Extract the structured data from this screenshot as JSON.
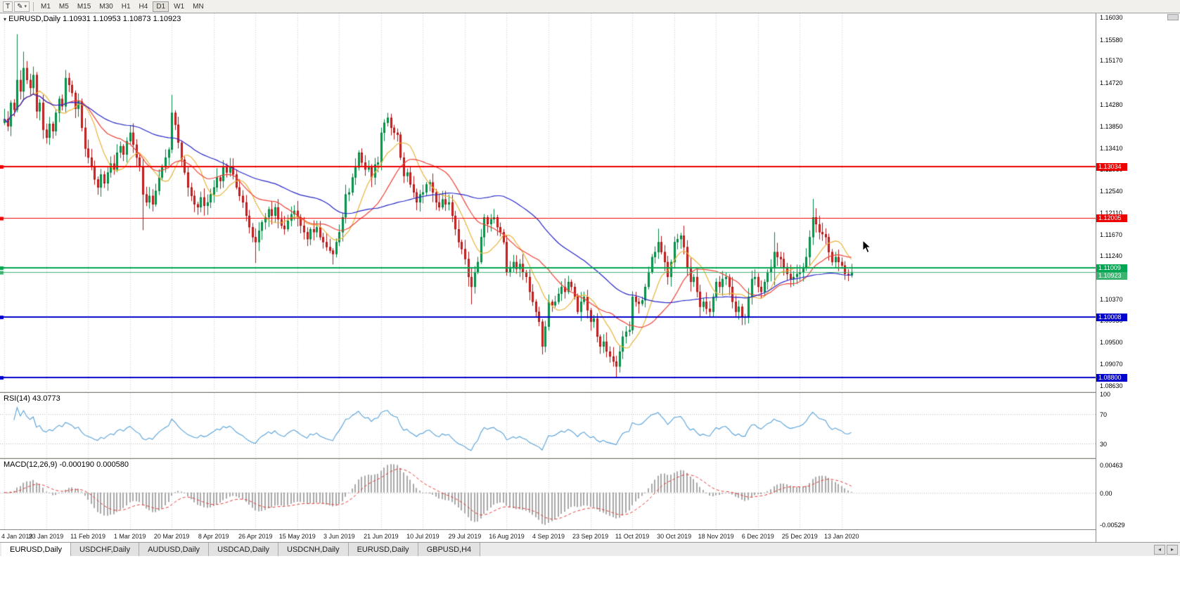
{
  "toolbar": {
    "text_tool_label": "T",
    "timeframes": [
      "M1",
      "M5",
      "M15",
      "M30",
      "H1",
      "H4",
      "D1",
      "W1",
      "MN"
    ],
    "active_timeframe": "D1"
  },
  "icons": {
    "pencil": "✎",
    "caret": "▾",
    "pane_collapse": "▾",
    "tabs_left": "◂",
    "tabs_right": "▸"
  },
  "chart": {
    "title": "EURUSD,Daily",
    "ohlc_text": "1.10931 1.10953 1.10873 1.10923"
  },
  "chart_data": {
    "type": "candlestick",
    "symbol": "EURUSD",
    "period": "Daily",
    "x_labels": [
      "4 Jan 2019",
      "23 Jan 2019",
      "11 Feb 2019",
      "1 Mar 2019",
      "20 Mar 2019",
      "8 Apr 2019",
      "26 Apr 2019",
      "15 May 2019",
      "3 Jun 2019",
      "21 Jun 2019",
      "10 Jul 2019",
      "29 Jul 2019",
      "16 Aug 2019",
      "4 Sep 2019",
      "23 Sep 2019",
      "11 Oct 2019",
      "30 Oct 2019",
      "18 Nov 2019",
      "6 Dec 2019",
      "25 Dec 2019",
      "13 Jan 2020"
    ],
    "label_every": 13,
    "first_open": 1.1392,
    "closes": [
      1.14,
      1.1385,
      1.1432,
      1.1418,
      1.1478,
      1.1455,
      1.1502,
      1.1478,
      1.1462,
      1.1488,
      1.1415,
      1.1432,
      1.1378,
      1.1362,
      1.139,
      1.1375,
      1.1412,
      1.144,
      1.1425,
      1.1482,
      1.1468,
      1.1452,
      1.142,
      1.1435,
      1.1382,
      1.134,
      1.1322,
      1.1305,
      1.1278,
      1.1262,
      1.1288,
      1.127,
      1.1292,
      1.131,
      1.1298,
      1.1332,
      1.1345,
      1.1328,
      1.1355,
      1.1372,
      1.1348,
      1.1322,
      1.1305,
      1.1248,
      1.1232,
      1.1245,
      1.1228,
      1.1255,
      1.1282,
      1.1302,
      1.1322,
      1.1338,
      1.1412,
      1.1388,
      1.1352,
      1.1318,
      1.1292,
      1.1262,
      1.1245,
      1.1228,
      1.1222,
      1.1242,
      1.1225,
      1.1232,
      1.1248,
      1.1262,
      1.1282,
      1.1275,
      1.1302,
      1.1292,
      1.1305,
      1.1288,
      1.1262,
      1.1245,
      1.1232,
      1.1205,
      1.1182,
      1.1162,
      1.1152,
      1.1175,
      1.1192,
      1.1202,
      1.1218,
      1.1205,
      1.1222,
      1.1198,
      1.1185,
      1.1178,
      1.1195,
      1.1208,
      1.1215,
      1.1202,
      1.1185,
      1.1172,
      1.1158,
      1.1178,
      1.1172,
      1.1182,
      1.1162,
      1.1152,
      1.1142,
      1.1135,
      1.1128,
      1.1152,
      1.1172,
      1.1202,
      1.1248,
      1.1252,
      1.1282,
      1.1302,
      1.1332,
      1.1312,
      1.1298,
      1.1302,
      1.1282,
      1.1308,
      1.1312,
      1.1372,
      1.1392,
      1.1402,
      1.1382,
      1.1372,
      1.1368,
      1.1322,
      1.1285,
      1.1292,
      1.1268,
      1.1252,
      1.1232,
      1.1248,
      1.1252,
      1.1268,
      1.1272,
      1.1252,
      1.1232,
      1.1222,
      1.1238,
      1.1228,
      1.1232,
      1.1205,
      1.1178,
      1.1152,
      1.1138,
      1.1118,
      1.1082,
      1.1062,
      1.1092,
      1.1112,
      1.1162,
      1.1202,
      1.1188,
      1.1198,
      1.1202,
      1.1182,
      1.1172,
      1.1152,
      1.1092,
      1.1102,
      1.1112,
      1.1098,
      1.1108,
      1.1092,
      1.1082,
      1.1052,
      1.1032,
      1.1012,
      1.0992,
      1.0942,
      1.0982,
      1.1032,
      1.1025,
      1.1032,
      1.1048,
      1.1062,
      1.1052,
      1.1072,
      1.1062,
      1.1042,
      1.1012,
      1.1032,
      1.1042,
      1.1015,
      1.0992,
      1.0998,
      1.0962,
      1.0942,
      1.0952,
      1.0932,
      1.0922,
      1.0912,
      1.0902,
      1.0932,
      1.0962,
      1.0972,
      1.0975,
      1.1042,
      1.1032,
      1.1028,
      1.1035,
      1.1062,
      1.1092,
      1.1122,
      1.1132,
      1.1152,
      1.1132,
      1.1112,
      1.1082,
      1.1112,
      1.1152,
      1.1158,
      1.1165,
      1.1142,
      1.1102,
      1.1072,
      1.1082,
      1.1052,
      1.1022,
      1.1032,
      1.1018,
      1.1012,
      1.1042,
      1.1072,
      1.1062,
      1.1078,
      1.1082,
      1.1062,
      1.1032,
      1.1012,
      1.1022,
      1.1002,
      1.1002,
      1.1042,
      1.1078,
      1.1082,
      1.1062,
      1.1052,
      1.1072,
      1.1092,
      1.1102,
      1.1132,
      1.1122,
      1.1118,
      1.1102,
      1.1088,
      1.1078,
      1.1082,
      1.1088,
      1.1092,
      1.1102,
      1.1122,
      1.1162,
      1.1202,
      1.1188,
      1.1172,
      1.1168,
      1.1162,
      1.1132,
      1.1112,
      1.1122,
      1.1112,
      1.1105,
      1.1088,
      1.1085,
      1.1092
    ],
    "wick_overrides": {
      "4": {
        "high": 1.157
      },
      "6": {
        "high": 1.1535
      },
      "43": {
        "low": 1.1176
      },
      "52": {
        "high": 1.1448
      },
      "78": {
        "low": 1.111
      },
      "102": {
        "low": 1.1107
      },
      "119": {
        "high": 1.1412
      },
      "145": {
        "low": 1.1027
      },
      "167": {
        "low": 1.0926
      },
      "190": {
        "low": 1.0879
      },
      "203": {
        "high": 1.1179
      },
      "239": {
        "high": 1.1172,
        "low": 1.1065
      },
      "251": {
        "high": 1.1239
      }
    },
    "y_range": {
      "top": 1.1612,
      "bottom": 1.0853
    },
    "price_ticks": [
      "1.16030",
      "1.15580",
      "1.15170",
      "1.14720",
      "1.14280",
      "1.13850",
      "1.13410",
      "1.12980",
      "1.12540",
      "1.12110",
      "1.11670",
      "1.11240",
      "1.10800",
      "1.10370",
      "1.09950",
      "1.09500",
      "1.09070",
      "1.08630"
    ],
    "horizontal_lines": [
      {
        "price": 1.13034,
        "label": "1.13034",
        "color": "#EE0000",
        "width": 2
      },
      {
        "price": 1.12005,
        "label": "1.12005",
        "color": "#EE0000",
        "width": 1
      },
      {
        "price": 1.11009,
        "label": "1.11009",
        "color": "#00A651",
        "width": 2
      },
      {
        "price": 1.10923,
        "label": "1.10923",
        "color": "#3CB371",
        "width": 1
      },
      {
        "price": 1.10008,
        "label": "1.10008",
        "color": "#0000CC",
        "width": 2
      },
      {
        "price": 1.088,
        "label": "1.08800",
        "color": "#0000CC",
        "width": 2
      }
    ],
    "moving_averages": [
      {
        "period": 10,
        "color": "#E8B33A"
      },
      {
        "period": 21,
        "color": "#EF4136"
      },
      {
        "period": 50,
        "color": "#2525C8"
      }
    ],
    "colors": {
      "candle_up": "#00B050",
      "candle_up_border": "#008040",
      "candle_down": "#E03030",
      "candle_down_border": "#B01010",
      "grid": "#cfcfcf",
      "rsi_line": "#55A0D8",
      "macd_histogram": "#A8A8A8",
      "macd_signal": "#E53935"
    },
    "rsi": {
      "label": "RSI(14)",
      "value": "43.0773",
      "period": 14,
      "axis_labels": [
        "100",
        "70",
        "30"
      ],
      "axis_values": [
        100,
        70,
        30
      ],
      "levels": [
        70,
        30
      ]
    },
    "macd": {
      "label": "MACD(12,26,9)",
      "value_text": "-0.000190 0.000580",
      "fast": 12,
      "slow": 26,
      "signal": 9,
      "axis_labels": [
        "0.00463",
        "0.00",
        "-0.00529"
      ],
      "axis_values": [
        0.00463,
        0,
        -0.00529
      ]
    }
  },
  "tabs": [
    {
      "label": "EURUSD,Daily",
      "active": true
    },
    {
      "label": "USDCHF,Daily",
      "active": false
    },
    {
      "label": "AUDUSD,Daily",
      "active": false
    },
    {
      "label": "USDCAD,Daily",
      "active": false
    },
    {
      "label": "USDCNH,Daily",
      "active": false
    },
    {
      "label": "EURUSD,Daily",
      "active": false
    },
    {
      "label": "GBPUSD,H4",
      "active": false
    }
  ]
}
